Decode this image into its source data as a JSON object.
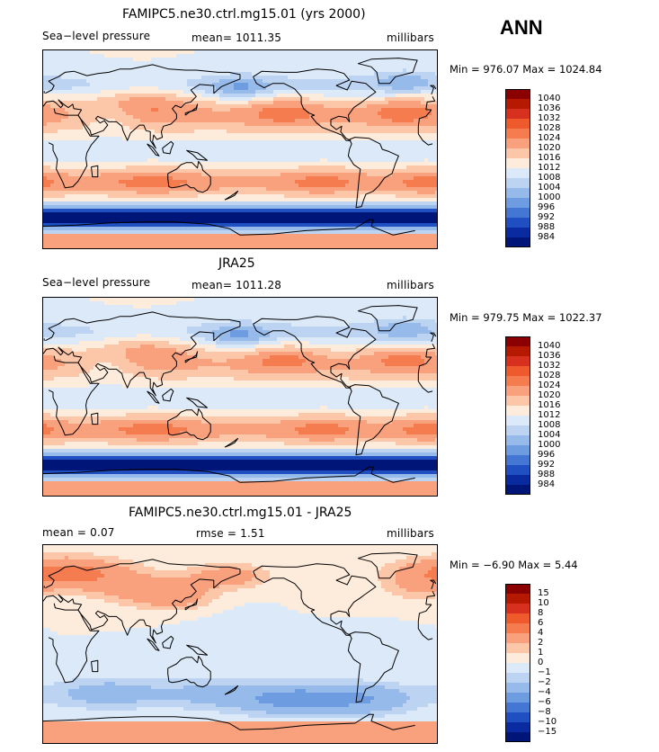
{
  "season": "ANN",
  "panels": [
    {
      "title": "FAMIPC5.ne30.ctrl.mg15.01 (yrs 2000)",
      "left_text": "Sea−level pressure",
      "center_text": "mean=  1011.35",
      "right_text": "millibars",
      "minmax": "Min = 976.07 Max = 1024.84",
      "kind": "abs",
      "legend_labels": [
        "1040",
        "1036",
        "1032",
        "1028",
        "1024",
        "1020",
        "1016",
        "1012",
        "1008",
        "1004",
        "1000",
        "996",
        "992",
        "988",
        "984"
      ]
    },
    {
      "title": "JRA25",
      "left_text": "Sea−level pressure",
      "center_text": "mean=  1011.28",
      "right_text": "millibars",
      "minmax": "Min = 979.75 Max = 1022.37",
      "kind": "abs",
      "legend_labels": [
        "1040",
        "1036",
        "1032",
        "1028",
        "1024",
        "1020",
        "1016",
        "1012",
        "1008",
        "1004",
        "1000",
        "996",
        "992",
        "988",
        "984"
      ]
    },
    {
      "title": "FAMIPC5.ne30.ctrl.mg15.01 - JRA25",
      "left_text": "mean =     0.07",
      "center_text": "rmse =     1.51",
      "right_text": "millibars",
      "minmax": "Min =   −6.90 Max =    5.44",
      "kind": "diff",
      "legend_labels": [
        "15",
        "10",
        "8",
        "6",
        "4",
        "2",
        "1",
        "0",
        "−1",
        "−2",
        "−4",
        "−6",
        "−8",
        "−10",
        "−15"
      ]
    }
  ],
  "colors": {
    "abs_scale": [
      "#8b0000",
      "#b51a00",
      "#d7301f",
      "#ef5a2c",
      "#f57c4f",
      "#f9a07c",
      "#fcc7a8",
      "#fdebdc",
      "#dce9f8",
      "#bcd4f2",
      "#96baea",
      "#6e9ce0",
      "#4477d4",
      "#1f4fc0",
      "#0a2aa0",
      "#001578"
    ],
    "diff_scale": [
      "#8b0000",
      "#b51a00",
      "#d7301f",
      "#ef5a2c",
      "#f57c4f",
      "#f9a07c",
      "#fcc7a8",
      "#fdebdc",
      "#dce9f8",
      "#bcd4f2",
      "#96baea",
      "#6e9ce0",
      "#4477d4",
      "#1f4fc0",
      "#0a2aa0",
      "#001578"
    ]
  }
}
